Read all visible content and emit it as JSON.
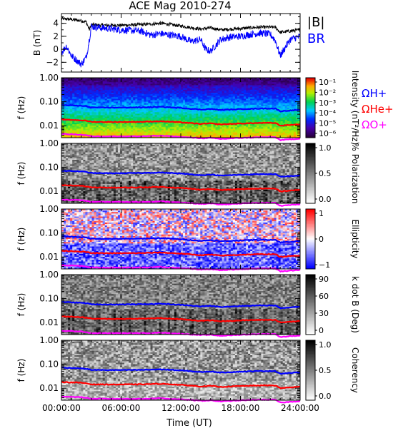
{
  "chart_data": {
    "title": "ACE Mag 2010-274",
    "xlabel": "Time (UT)",
    "x_tick_labels": [
      "00:00:00",
      "06:00:00",
      "12:00:00",
      "18:00:00",
      "24:00:00"
    ],
    "x_range_hours": [
      0,
      24
    ],
    "panels": [
      {
        "type": "line",
        "ylabel": "B (nT)",
        "y_tick_labels": [
          "4",
          "2",
          "0",
          "−2"
        ],
        "ylim": [
          -3.5,
          5.5
        ],
        "legend": [
          "|B|",
          "BR"
        ],
        "series": [
          {
            "name": "|B|",
            "color": "#000000",
            "x": [
              0,
              1,
              2,
              2.5,
              2.8,
              3,
              4,
              6,
              8,
              10,
              12,
              14,
              15,
              16,
              18,
              20,
              21.5,
              22,
              23,
              24
            ],
            "y": [
              4.7,
              4.6,
              4.4,
              4.2,
              3.0,
              3.8,
              3.7,
              3.7,
              3.8,
              4.0,
              3.6,
              3.1,
              3.3,
              3.0,
              3.2,
              3.4,
              3.4,
              2.6,
              2.8,
              3.0
            ]
          },
          {
            "name": "BR",
            "color": "#0000ff",
            "x": [
              0,
              0.5,
              1,
              2,
              2.5,
              2.8,
              3,
              4,
              6,
              8,
              9,
              10,
              12,
              13,
              14,
              14.5,
              15,
              16,
              17,
              18,
              19,
              20,
              21,
              21.5,
              22,
              23,
              24
            ],
            "y": [
              -0.5,
              0.5,
              -1.0,
              -2.3,
              -1.2,
              1.5,
              3.5,
              3.3,
              3.0,
              2.8,
              2.2,
              2.4,
              2.0,
              1.2,
              1.5,
              0.0,
              -0.3,
              1.5,
              1.9,
              2.0,
              2.3,
              2.5,
              2.3,
              1.4,
              -1.0,
              1.5,
              2.0
            ]
          }
        ]
      },
      {
        "type": "heatmap",
        "ylabel": "f (Hz)",
        "y_tick_labels": [
          "1.00",
          "0.10",
          "0.01"
        ],
        "colorbar_label": "Intensity (nT²/Hz)",
        "colorbar_ticks": [
          "10⁻¹",
          "10⁻²",
          "10⁻³",
          "10⁻⁴",
          "10⁻⁵",
          "10⁻⁶"
        ],
        "scale": "rainbow"
      },
      {
        "type": "heatmap",
        "ylabel": "f (Hz)",
        "y_tick_labels": [
          "1.00",
          "0.10",
          "0.01"
        ],
        "colorbar_label": "% Polarization",
        "colorbar_ticks": [
          "1.0",
          "0.5",
          "0.0"
        ],
        "scale": "gray"
      },
      {
        "type": "heatmap",
        "ylabel": "f (Hz)",
        "y_tick_labels": [
          "1.00",
          "0.10",
          "0.01"
        ],
        "colorbar_label": "Ellipticity",
        "colorbar_ticks": [
          "1",
          "0",
          "−1"
        ],
        "scale": "bluered"
      },
      {
        "type": "heatmap",
        "ylabel": "f (Hz)",
        "y_tick_labels": [
          "1.00",
          "0.10",
          "0.01"
        ],
        "colorbar_label": "k dot B (Deg)",
        "colorbar_ticks": [
          "90",
          "60",
          "30",
          "0"
        ],
        "scale": "gray"
      },
      {
        "type": "heatmap",
        "ylabel": "f (Hz)",
        "y_tick_labels": [
          "1.00",
          "0.10",
          "0.01"
        ],
        "colorbar_label": "Coherency",
        "colorbar_ticks": [
          "1.0",
          "0.5",
          "0.0"
        ],
        "scale": "gray"
      }
    ],
    "gyrofrequency_legend": [
      {
        "label": "ΩH+",
        "color": "#0000ff"
      },
      {
        "label": "ΩHe+",
        "color": "#ff0000"
      },
      {
        "label": "ΩO+",
        "color": "#ff00ff"
      }
    ],
    "gyro_lines": {
      "x": [
        0,
        1,
        2,
        2.5,
        3,
        4,
        6,
        8,
        10,
        12,
        14,
        15,
        16,
        18,
        20,
        21.5,
        22,
        23,
        24
      ],
      "H": [
        0.072,
        0.07,
        0.067,
        0.064,
        0.058,
        0.057,
        0.057,
        0.058,
        0.061,
        0.055,
        0.047,
        0.05,
        0.045,
        0.049,
        0.052,
        0.052,
        0.04,
        0.043,
        0.046
      ],
      "He": [
        0.018,
        0.0175,
        0.0168,
        0.016,
        0.0145,
        0.0143,
        0.0143,
        0.0145,
        0.0153,
        0.0138,
        0.0118,
        0.0125,
        0.0113,
        0.0123,
        0.013,
        0.013,
        0.01,
        0.0108,
        0.0115
      ],
      "O": [
        0.0045,
        0.0044,
        0.0042,
        0.004,
        0.0036,
        0.0036,
        0.0036,
        0.0036,
        0.0038,
        0.0034,
        0.003,
        0.0031,
        0.0028,
        0.0031,
        0.0033,
        0.0033,
        0.0025,
        0.0027,
        0.0029
      ]
    }
  }
}
